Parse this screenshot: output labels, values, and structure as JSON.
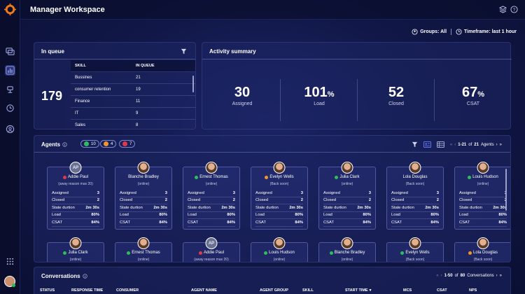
{
  "header": {
    "title": "Manager Workspace"
  },
  "filters": {
    "groups": "Groups: All",
    "timeframe": "Timeframe: last 1 hour"
  },
  "queue": {
    "title": "In queue",
    "total": "179",
    "columns": [
      "SKILL",
      "IN QUEUE"
    ],
    "rows": [
      {
        "skill": "Bussines",
        "count": "21"
      },
      {
        "skill": "consumer retention",
        "count": "19"
      },
      {
        "skill": "Finance",
        "count": "11"
      },
      {
        "skill": "IT",
        "count": "9"
      },
      {
        "skill": "Sales",
        "count": "8"
      }
    ]
  },
  "activity": {
    "title": "Activity summary",
    "metrics": [
      {
        "value": "30",
        "unit": "",
        "label": "Assigned"
      },
      {
        "value": "101",
        "unit": "%",
        "label": "Load"
      },
      {
        "value": "52",
        "unit": "",
        "label": "Closed"
      },
      {
        "value": "67",
        "unit": "%",
        "label": "CSAT"
      }
    ]
  },
  "agents": {
    "title": "Agents",
    "badges": [
      {
        "count": "10",
        "color": "#2ebd5a"
      },
      {
        "count": "4",
        "color": "#f0952a"
      },
      {
        "count": "7",
        "color": "#e03a4a"
      }
    ],
    "pager": {
      "range": "1-21",
      "of": "of",
      "total": "21",
      "unit": "Agents"
    },
    "stat_labels": [
      "Assigned",
      "Closed",
      "State durtion",
      "Load",
      "CSAT"
    ],
    "cards": [
      {
        "initials": "AP",
        "name": "Addie Paul",
        "status": "(away reason max 20)",
        "dot": "#e03a4a",
        "stats": [
          "3",
          "2",
          "2m 30s",
          "80%",
          "84%"
        ]
      },
      {
        "initials": "",
        "name": "Blanche Bradley",
        "status": "(online)",
        "dot": "",
        "stats": [
          "3",
          "2",
          "2m 30s",
          "80%",
          "84%"
        ]
      },
      {
        "initials": "",
        "name": "Ernest Thomas",
        "status": "(online)",
        "dot": "#2ebd5a",
        "stats": [
          "3",
          "2",
          "2m 30s",
          "80%",
          "84%"
        ]
      },
      {
        "initials": "",
        "name": "Evelyn Wells",
        "status": "(Back soon)",
        "dot": "#f0952a",
        "stats": [
          "3",
          "2",
          "2m 30s",
          "80%",
          "84%"
        ]
      },
      {
        "initials": "",
        "name": "Julia Clark",
        "status": "(online)",
        "dot": "#2ebd5a",
        "stats": [
          "3",
          "2",
          "2m 30s",
          "80%",
          "84%"
        ]
      },
      {
        "initials": "",
        "name": "Lola Douglas",
        "status": "(Back soon)",
        "dot": "",
        "stats": [
          "3",
          "2",
          "2m 30s",
          "80%",
          "84%"
        ]
      },
      {
        "initials": "",
        "name": "Louis Hudson",
        "status": "(online)",
        "dot": "#2ebd5a",
        "stats": [
          "3",
          "2",
          "2m 30s",
          "80%",
          "84%"
        ]
      },
      {
        "initials": "",
        "name": "Julia Clark",
        "status": "(online)",
        "dot": "#2ebd5a",
        "stats": []
      },
      {
        "initials": "",
        "name": "Ernest Thomas",
        "status": "(online)",
        "dot": "#2ebd5a",
        "stats": []
      },
      {
        "initials": "AP",
        "name": "Addie Paul",
        "status": "(away reason max 20)",
        "dot": "#e03a4a",
        "stats": []
      },
      {
        "initials": "",
        "name": "Louis Hudson",
        "status": "(online)",
        "dot": "#2ebd5a",
        "stats": []
      },
      {
        "initials": "",
        "name": "Blanche Bradley",
        "status": "(online)",
        "dot": "#2ebd5a",
        "stats": []
      },
      {
        "initials": "",
        "name": "Evelyn Wells",
        "status": "(Back soon)",
        "dot": "#2ebd5a",
        "stats": []
      },
      {
        "initials": "",
        "name": "Lola Douglas",
        "status": "(Back soon)",
        "dot": "#f0952a",
        "stats": []
      }
    ]
  },
  "conversations": {
    "title": "Conversations",
    "pager": {
      "range": "1-50",
      "of": "of",
      "total": "80",
      "unit": "Conversations"
    },
    "columns": [
      "STATUS",
      "RESPONSE TIME",
      "CONSUMER",
      "AGENT NAME",
      "AGENT GROUP",
      "SKILL",
      "START TIME",
      "MCS",
      "CSAT",
      "NPS"
    ]
  }
}
